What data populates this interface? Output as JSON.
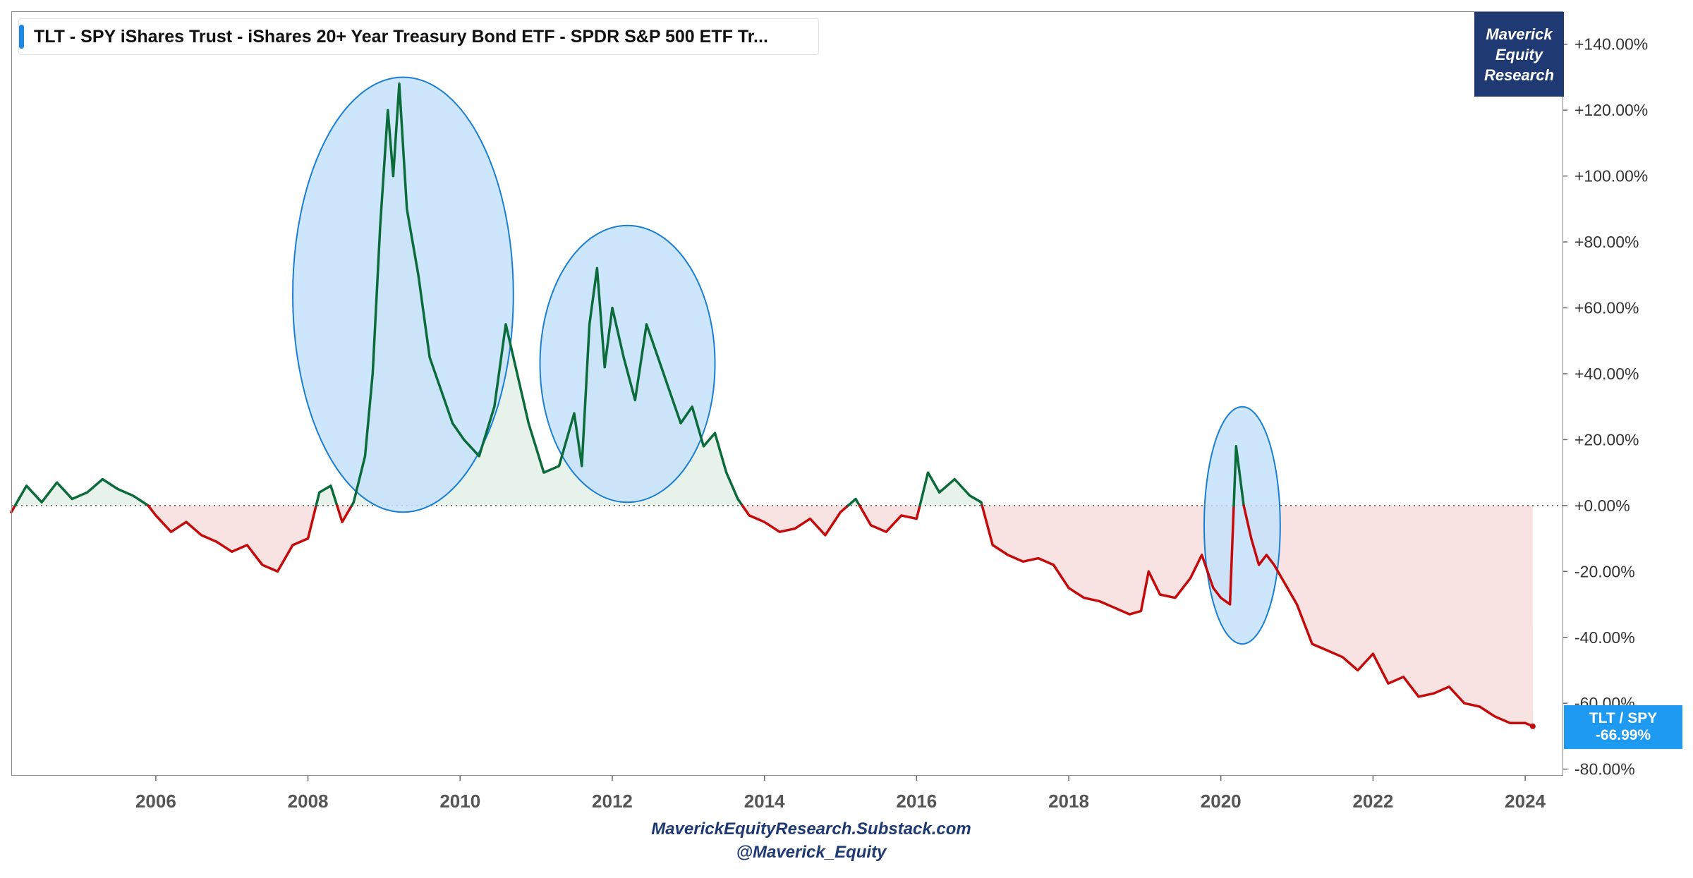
{
  "header": {
    "title": "TLT - SPY   iShares Trust - iShares 20+ Year Treasury Bond ETF - SPDR S&P 500 ETF Tr..."
  },
  "logo": {
    "line1": "Maverick",
    "line2": "Equity",
    "line3": "Research"
  },
  "current_value": {
    "name": "TLT / SPY",
    "value": "-66.99%"
  },
  "footer": {
    "site": "MaverickEquityResearch.Substack.com",
    "handle": "@Maverick_Equity"
  },
  "colors": {
    "positive_line": "#0b6b3a",
    "negative_line": "#c40a0a",
    "positive_fill": "#e6f2ea",
    "negative_fill": "#f9e2e2",
    "highlight_fill": "#c6e2fa",
    "highlight_stroke": "#1a7fd4",
    "current_label_bg": "#1e9bf0",
    "logo_bg": "#1f3a72"
  },
  "chart_data": {
    "type": "line",
    "title": "TLT - SPY   iShares Trust - iShares 20+ Year Treasury Bond ETF - SPDR S&P 500 ETF Tr...",
    "xlabel": "",
    "ylabel": "",
    "x_ticks": [
      "2006",
      "2008",
      "2010",
      "2012",
      "2014",
      "2016",
      "2018",
      "2020",
      "2022",
      "2024"
    ],
    "y_ticks": [
      "+140.00%",
      "+120.00%",
      "+100.00%",
      "+80.00%",
      "+60.00%",
      "+40.00%",
      "+20.00%",
      "+0.00%",
      "-20.00%",
      "-40.00%",
      "-60.00%",
      "-80.00%"
    ],
    "xlim": [
      2004.1,
      2024.5
    ],
    "ylim": [
      -82,
      150
    ],
    "baseline": 0,
    "grid": false,
    "series": [
      {
        "name": "TLT / SPY",
        "x": [
          2004.1,
          2004.3,
          2004.5,
          2004.7,
          2004.9,
          2005.1,
          2005.3,
          2005.5,
          2005.7,
          2005.9,
          2006.0,
          2006.2,
          2006.4,
          2006.6,
          2006.8,
          2007.0,
          2007.2,
          2007.4,
          2007.6,
          2007.8,
          2008.0,
          2008.15,
          2008.3,
          2008.45,
          2008.6,
          2008.75,
          2008.85,
          2008.95,
          2009.05,
          2009.12,
          2009.2,
          2009.3,
          2009.45,
          2009.6,
          2009.75,
          2009.9,
          2010.05,
          2010.25,
          2010.45,
          2010.6,
          2010.75,
          2010.9,
          2011.1,
          2011.3,
          2011.5,
          2011.6,
          2011.7,
          2011.8,
          2011.9,
          2012.0,
          2012.15,
          2012.3,
          2012.45,
          2012.6,
          2012.75,
          2012.9,
          2013.05,
          2013.2,
          2013.35,
          2013.5,
          2013.65,
          2013.8,
          2014.0,
          2014.2,
          2014.4,
          2014.6,
          2014.8,
          2015.0,
          2015.2,
          2015.4,
          2015.6,
          2015.8,
          2016.0,
          2016.15,
          2016.3,
          2016.5,
          2016.7,
          2016.85,
          2017.0,
          2017.2,
          2017.4,
          2017.6,
          2017.8,
          2018.0,
          2018.2,
          2018.4,
          2018.6,
          2018.8,
          2018.95,
          2019.05,
          2019.2,
          2019.4,
          2019.6,
          2019.75,
          2019.9,
          2020.0,
          2020.12,
          2020.2,
          2020.3,
          2020.4,
          2020.5,
          2020.6,
          2020.7,
          2020.8,
          2021.0,
          2021.2,
          2021.4,
          2021.6,
          2021.8,
          2022.0,
          2022.2,
          2022.4,
          2022.6,
          2022.8,
          2023.0,
          2023.2,
          2023.4,
          2023.6,
          2023.8,
          2024.0,
          2024.1
        ],
        "y": [
          -2,
          6,
          1,
          7,
          2,
          4,
          8,
          5,
          3,
          0,
          -3,
          -8,
          -5,
          -9,
          -11,
          -14,
          -12,
          -18,
          -20,
          -12,
          -10,
          4,
          6,
          -5,
          1,
          15,
          40,
          85,
          120,
          100,
          128,
          90,
          70,
          45,
          35,
          25,
          20,
          15,
          30,
          55,
          40,
          25,
          10,
          12,
          28,
          12,
          55,
          72,
          42,
          60,
          45,
          32,
          55,
          45,
          35,
          25,
          30,
          18,
          22,
          10,
          2,
          -3,
          -5,
          -8,
          -7,
          -4,
          -9,
          -2,
          2,
          -6,
          -8,
          -3,
          -4,
          10,
          4,
          8,
          3,
          1,
          -12,
          -15,
          -17,
          -16,
          -18,
          -25,
          -28,
          -29,
          -31,
          -33,
          -32,
          -20,
          -27,
          -28,
          -22,
          -15,
          -25,
          -28,
          -30,
          18,
          0,
          -10,
          -18,
          -15,
          -18,
          -22,
          -30,
          -42,
          -44,
          -46,
          -50,
          -45,
          -54,
          -52,
          -58,
          -57,
          -55,
          -60,
          -61,
          -64,
          -66,
          -66,
          -67
        ]
      }
    ],
    "highlights": [
      {
        "center_x": 2009.25,
        "center_y": 64,
        "radius_x": 1.45,
        "radius_y": 66
      },
      {
        "center_x": 2012.2,
        "center_y": 43,
        "radius_x": 1.15,
        "radius_y": 42
      },
      {
        "center_x": 2020.28,
        "center_y": -6,
        "radius_x": 0.5,
        "radius_y": 36
      }
    ]
  }
}
